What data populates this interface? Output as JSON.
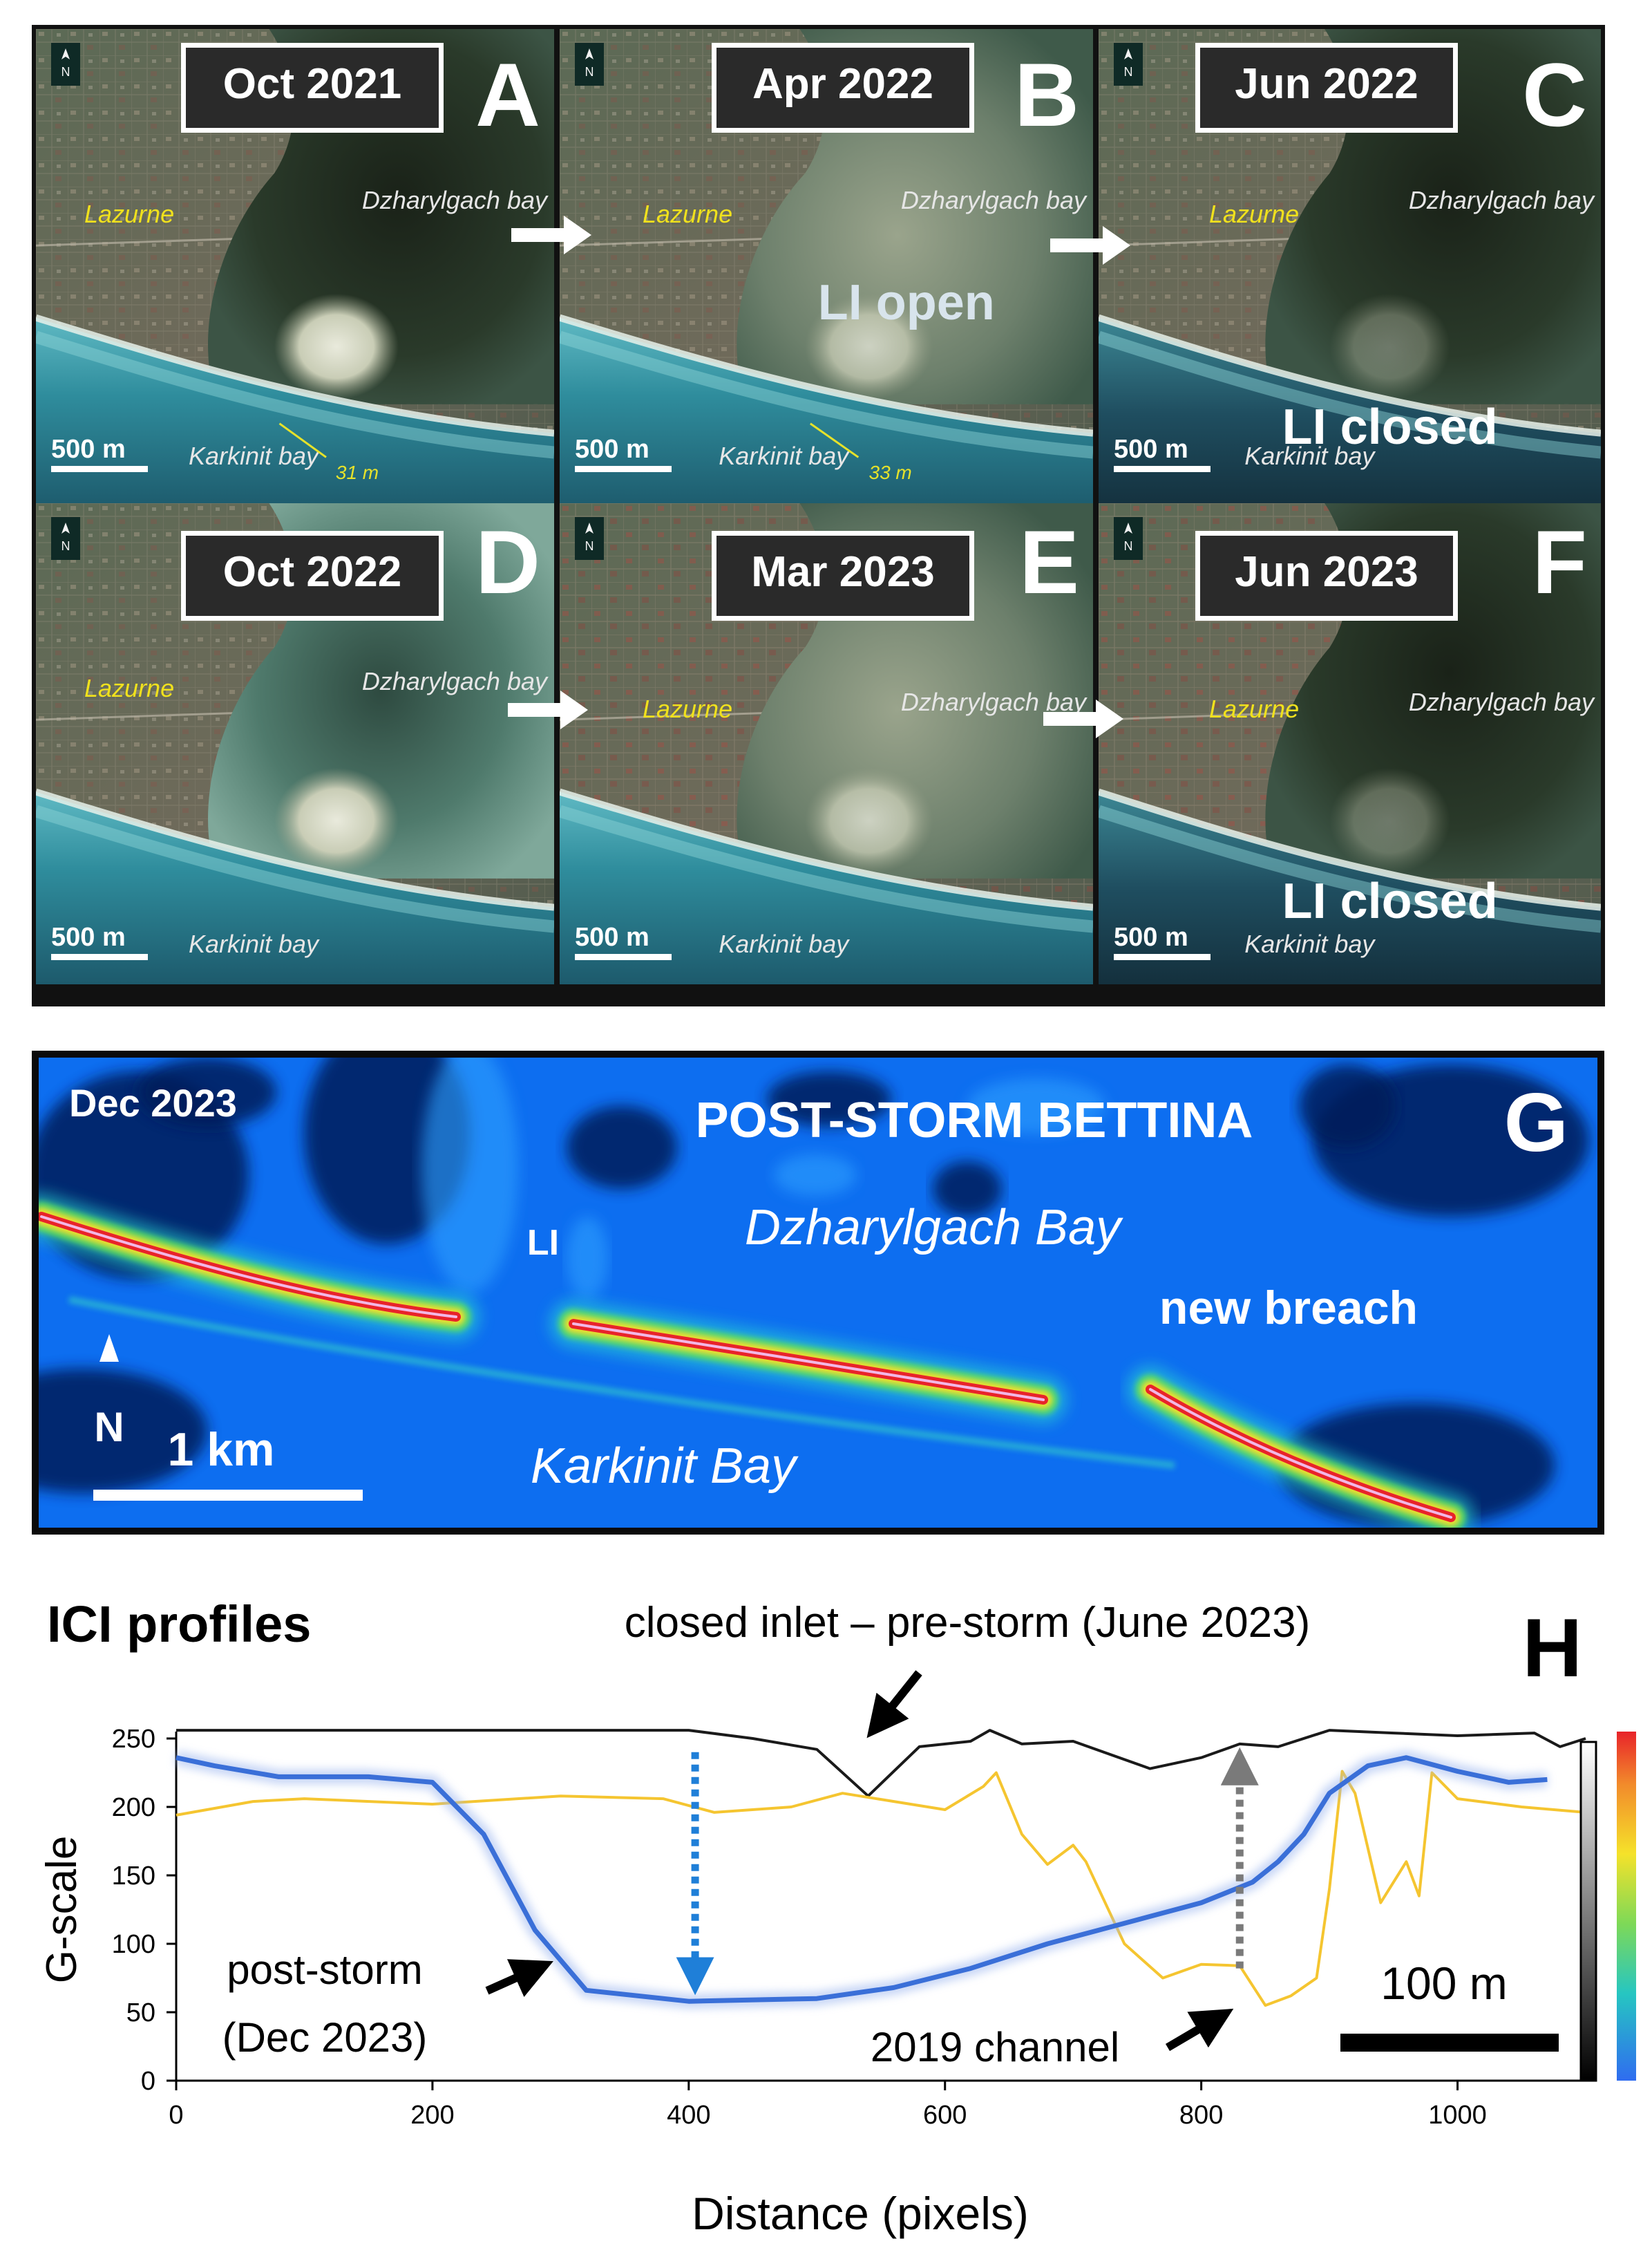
{
  "panels": [
    {
      "letter": "A",
      "date": "Oct 2021",
      "town": "Lazurne",
      "north_bay": "Dzharylgach bay",
      "south_bay": "Karkinit bay",
      "scale": "500 m",
      "width_label": "31 m",
      "status": "",
      "bay_mood": "dark"
    },
    {
      "letter": "B",
      "date": "Apr 2022",
      "town": "Lazurne",
      "north_bay": "Dzharylgach bay",
      "south_bay": "Karkinit bay",
      "scale": "500 m",
      "width_label": "33 m",
      "status": "LI  open",
      "bay_mood": "sediment"
    },
    {
      "letter": "C",
      "date": "Jun 2022",
      "town": "Lazurne",
      "north_bay": "Dzharylgach bay",
      "south_bay": "Karkinit bay",
      "scale": "500 m",
      "width_label": "",
      "status": "LI closed",
      "bay_mood": "dark"
    },
    {
      "letter": "D",
      "date": "Oct 2022",
      "town": "Lazurne",
      "north_bay": "Dzharylgach bay",
      "south_bay": "Karkinit bay",
      "scale": "500 m",
      "width_label": "",
      "status": "",
      "bay_mood": "teal"
    },
    {
      "letter": "E",
      "date": "Mar 2023",
      "town": "Lazurne",
      "north_bay": "Dzharylgach bay",
      "south_bay": "Karkinit bay",
      "scale": "500 m",
      "width_label": "",
      "status": "",
      "bay_mood": "sediment"
    },
    {
      "letter": "F",
      "date": "Jun 2023",
      "town": "Lazurne",
      "north_bay": "Dzharylgach bay",
      "south_bay": "Karkinit bay",
      "scale": "500 m",
      "width_label": "",
      "status": "LI closed",
      "bay_mood": "dark"
    }
  ],
  "north_symbol": "N",
  "panel_g": {
    "letter": "G",
    "date": "Dec 2023",
    "title": "POST-STORM BETTINA",
    "inlet": "LI",
    "north_bay": "Dzharylgach Bay",
    "south_bay": "Karkinit Bay",
    "breach": "new breach",
    "north": "N",
    "scale": "1 km"
  },
  "panel_h": {
    "letter": "H",
    "title": "ICI profiles",
    "scale_bar": "100 m",
    "annotations": {
      "pre_storm": "closed inlet – pre-storm (June 2023)",
      "post_storm_1": "post-storm",
      "post_storm_2": "(Dec 2023)",
      "channel": "2019 channel"
    }
  },
  "chart_data": {
    "type": "line",
    "xlabel": "Distance (pixels)",
    "ylabel": "G-scale",
    "xlim": [
      0,
      1100
    ],
    "ylim": [
      0,
      250
    ],
    "xticks": [
      0,
      200,
      400,
      600,
      800,
      1000
    ],
    "yticks": [
      0,
      50,
      100,
      150,
      200,
      250
    ],
    "grid": false,
    "legend": "none",
    "series": [
      {
        "color": "#1a1a1a",
        "x": [
          0,
          100,
          200,
          300,
          400,
          450,
          500,
          540,
          580,
          620,
          635,
          660,
          700,
          760,
          800,
          830,
          860,
          900,
          950,
          1000,
          1060,
          1080,
          1100
        ],
        "y": [
          256,
          256,
          256,
          256,
          256,
          250,
          242,
          208,
          244,
          248,
          256,
          246,
          248,
          228,
          236,
          246,
          244,
          256,
          254,
          252,
          254,
          244,
          250
        ]
      },
      {
        "color": "#f5c530",
        "x": [
          0,
          60,
          100,
          200,
          300,
          380,
          420,
          480,
          520,
          600,
          630,
          640,
          660,
          680,
          700,
          710,
          740,
          770,
          800,
          830,
          850,
          870,
          890,
          900,
          910,
          920,
          940,
          960,
          970,
          980,
          1000,
          1050,
          1100
        ],
        "y": [
          194,
          204,
          206,
          202,
          208,
          206,
          196,
          200,
          210,
          198,
          215,
          225,
          180,
          158,
          172,
          160,
          100,
          75,
          85,
          84,
          55,
          62,
          75,
          140,
          226,
          210,
          130,
          160,
          135,
          225,
          206,
          200,
          196
        ]
      },
      {
        "color": "#3a6fd8",
        "x": [
          0,
          30,
          80,
          150,
          200,
          240,
          280,
          320,
          400,
          500,
          560,
          620,
          680,
          720,
          760,
          800,
          840,
          860,
          880,
          900,
          930,
          960,
          1000,
          1040,
          1070
        ],
        "y": [
          236,
          230,
          222,
          222,
          218,
          180,
          110,
          66,
          58,
          60,
          68,
          82,
          100,
          110,
          120,
          130,
          145,
          160,
          180,
          210,
          230,
          236,
          226,
          218,
          220
        ]
      }
    ]
  }
}
